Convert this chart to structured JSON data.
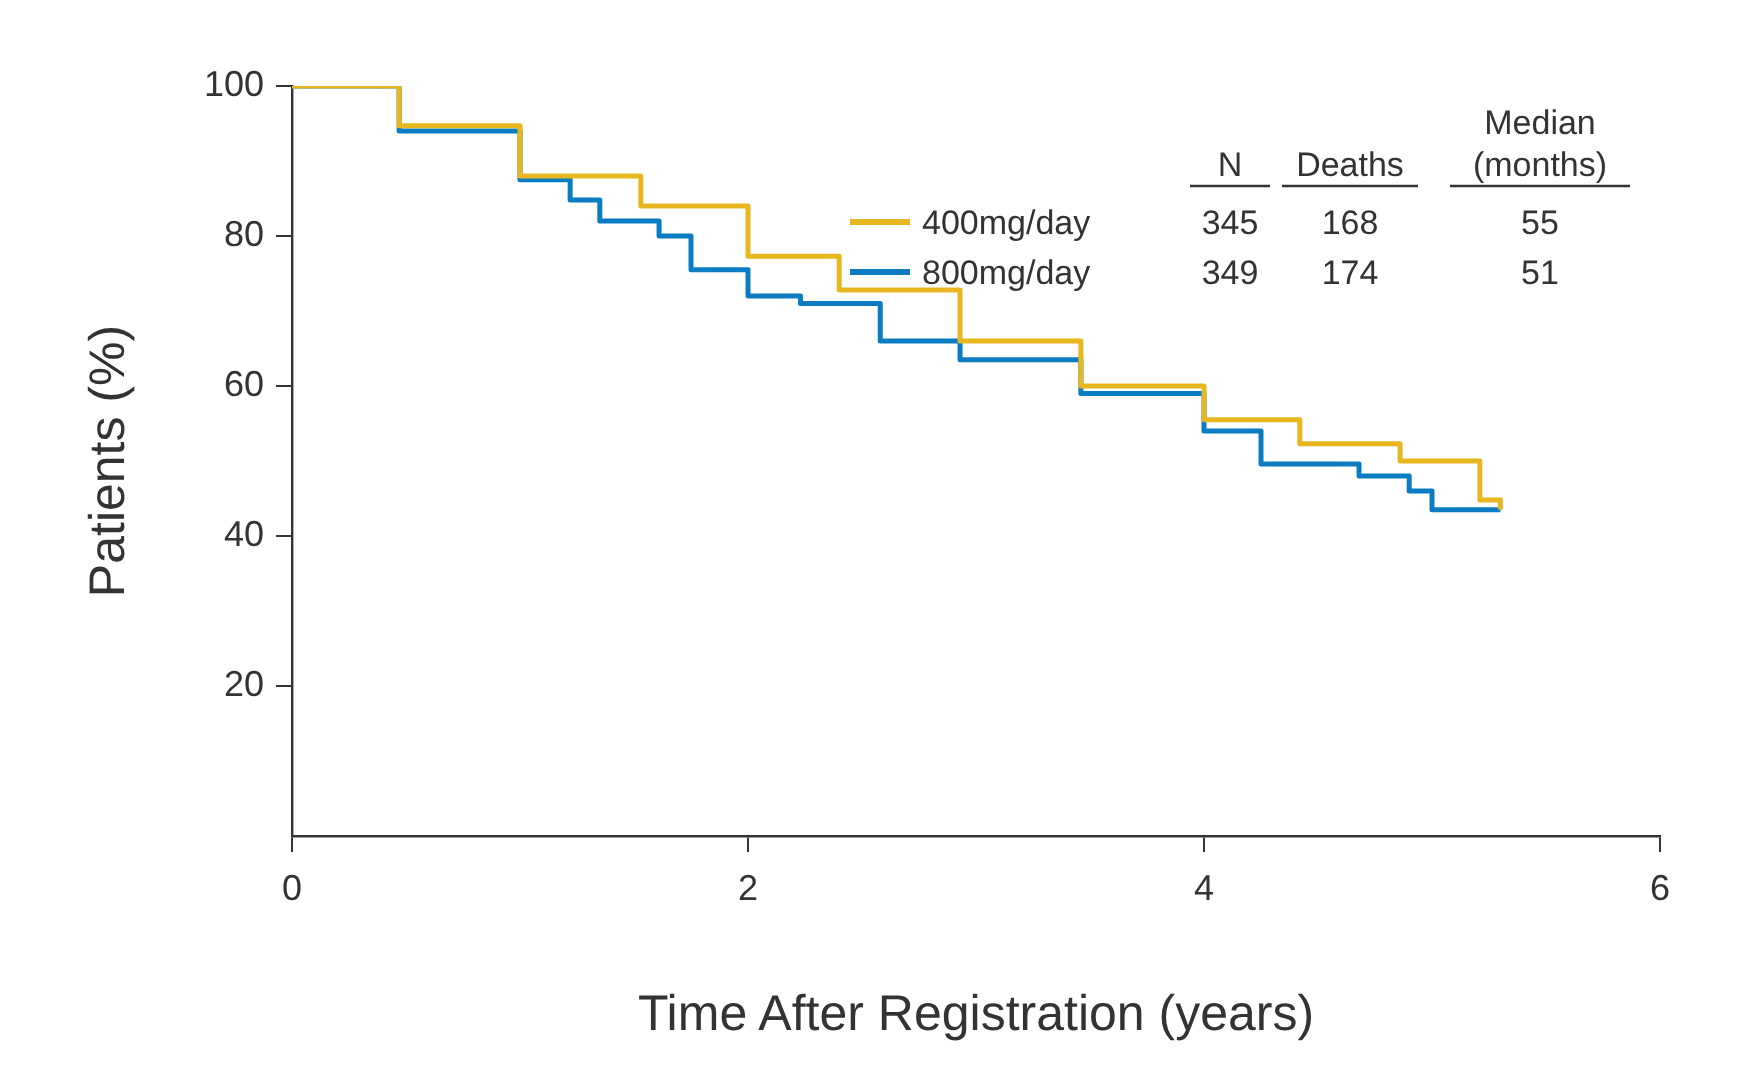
{
  "chart_data": {
    "type": "step",
    "xlabel": "Time After Registration (years)",
    "ylabel": "Patients (%)",
    "xlim": [
      0,
      6
    ],
    "xticks": [
      0,
      2,
      4,
      6
    ],
    "ylim": [
      0,
      100
    ],
    "yticks": [
      20,
      40,
      60,
      80,
      100
    ],
    "grid": false,
    "legend": "top right",
    "series": [
      {
        "name": "400mg/day",
        "color": "#e8b720",
        "x": [
          0,
          0.47,
          1.0,
          1.53,
          2.0,
          2.4,
          2.93,
          3.46,
          4.0,
          4.42,
          4.86,
          5.21,
          5.3
        ],
        "values": [
          100,
          94.7,
          88,
          84,
          77.3,
          72.8,
          66,
          60,
          55.5,
          52.3,
          50,
          44.8,
          43.5
        ]
      },
      {
        "name": "800mg/day",
        "color": "#0a7dc2",
        "x": [
          0,
          0.47,
          1.0,
          1.22,
          1.35,
          1.61,
          1.75,
          2.0,
          2.23,
          2.58,
          2.93,
          3.46,
          4.0,
          4.25,
          4.68,
          4.9,
          5.0,
          5.3
        ],
        "values": [
          100,
          94,
          87.5,
          84.8,
          82,
          80,
          75.5,
          72,
          71,
          66,
          63.5,
          59,
          54,
          49.6,
          48,
          46,
          43.5,
          43.5
        ]
      }
    ],
    "annotations": [
      "N",
      "Deaths",
      "Median (months)",
      "345",
      "168",
      "55",
      "349",
      "174",
      "51"
    ]
  }
}
